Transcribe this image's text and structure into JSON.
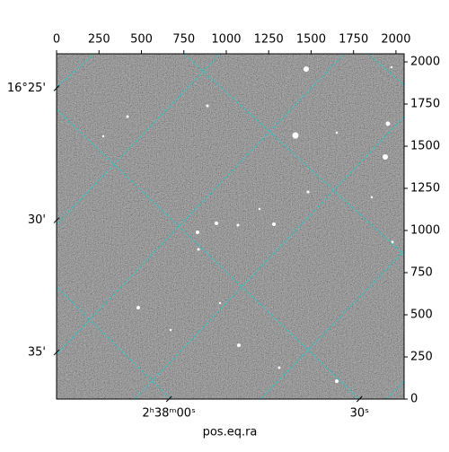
{
  "chart_data": {
    "type": "image",
    "xlabel": "pos.eq.ra",
    "xlim": [
      0,
      2048
    ],
    "ylim": [
      0,
      2048
    ],
    "xticks": [
      0,
      250,
      500,
      750,
      1000,
      1250,
      1500,
      1750,
      2000
    ],
    "yticks": [
      0,
      250,
      500,
      750,
      1000,
      1250,
      1500,
      1750,
      2000
    ],
    "dec_ticks": [
      {
        "value": 1844,
        "label": "16°25'"
      },
      {
        "value": 1061,
        "label": "30'"
      },
      {
        "value": 277,
        "label": "35'"
      }
    ],
    "ra_ticks": [
      {
        "value": 662,
        "label": "2ʰ38ᵐ00ˢ"
      },
      {
        "value": 1785,
        "label": "30ˢ"
      }
    ],
    "grid_color": "#2ec4c4"
  }
}
